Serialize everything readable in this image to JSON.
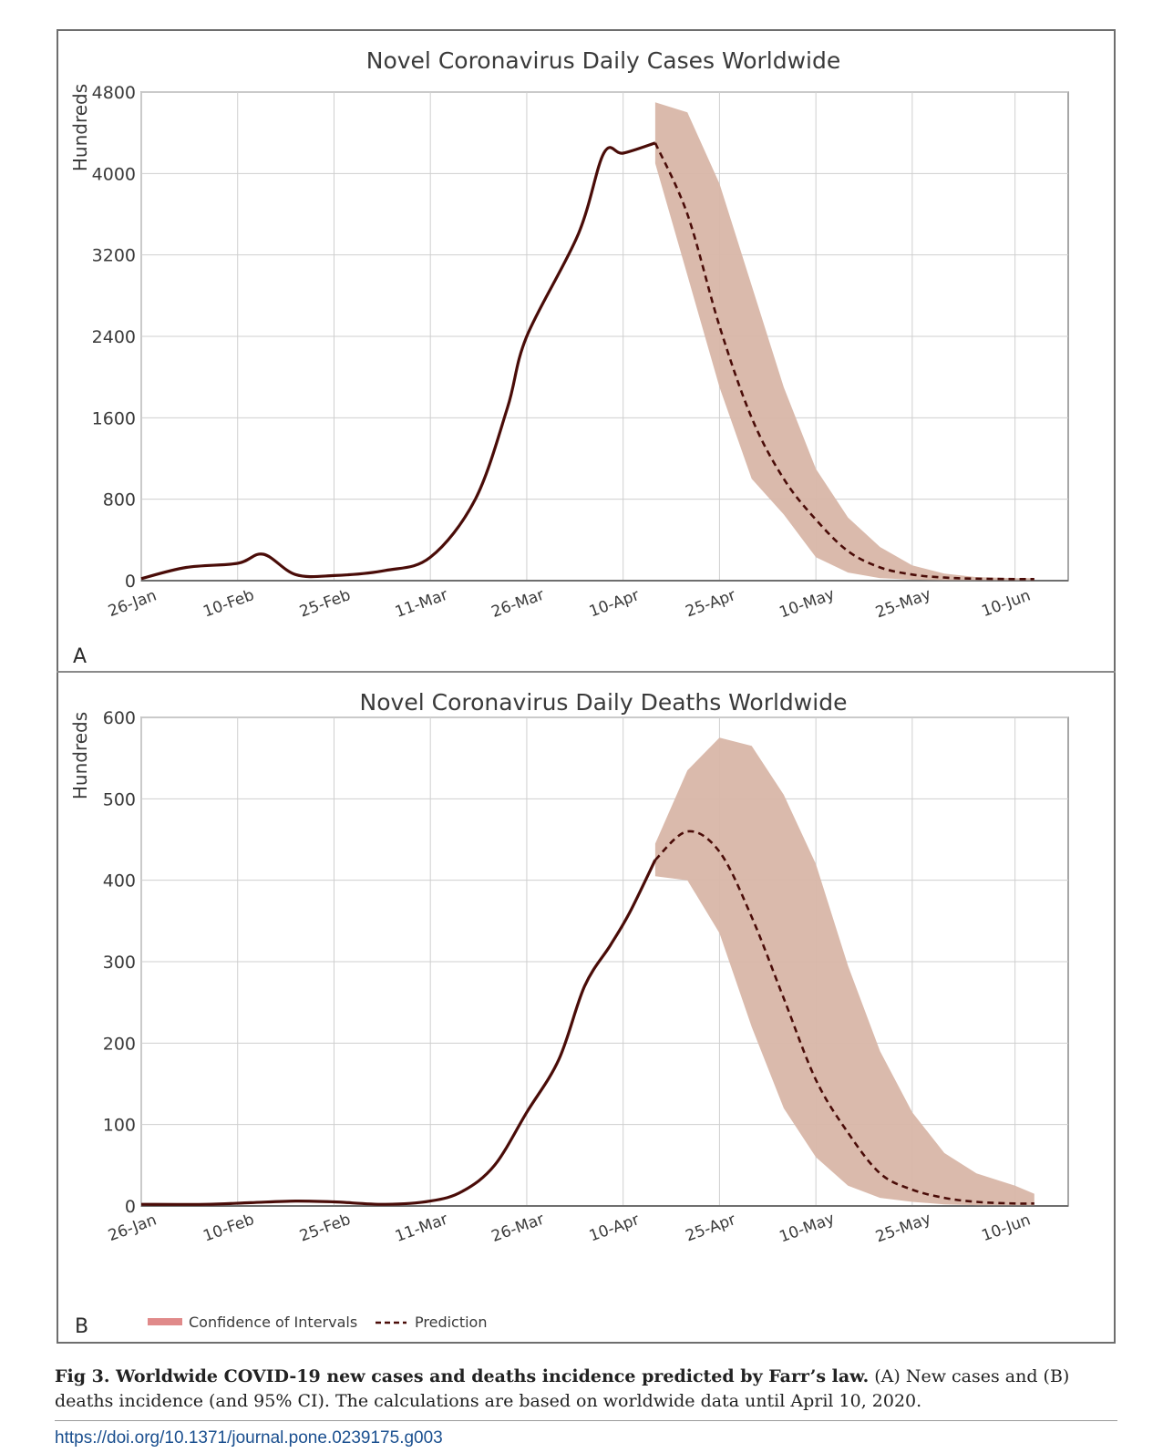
{
  "colors": {
    "line": "#4a0c08",
    "ci_fill": "#d8b6a8",
    "legend_ci": "#e08a8a",
    "grid": "#cfcfcf",
    "axis": "#8a8a8a",
    "link": "#1a4f8f"
  },
  "x_tick_labels": [
    "26-Jan",
    "10-Feb",
    "25-Feb",
    "11-Mar",
    "26-Mar",
    "10-Apr",
    "25-Apr",
    "10-May",
    "25-May",
    "10-Jun"
  ],
  "chart_data": [
    {
      "type": "line",
      "panel": "A",
      "title": "Novel Coronavirus Daily Cases Worldwide",
      "ylabel": "Hundreds",
      "ylim": [
        0,
        4800
      ],
      "yticks": [
        0,
        800,
        1600,
        2400,
        3200,
        4000,
        4800
      ],
      "x": [
        "26-Jan",
        "2-Feb",
        "10-Feb",
        "14-Feb",
        "19-Feb",
        "25-Feb",
        "4-Mar",
        "11-Mar",
        "18-Mar",
        "23-Mar",
        "26-Mar",
        "3-Apr",
        "7-Apr",
        "10-Apr",
        "15-Apr"
      ],
      "series": [
        {
          "values": [
            20,
            130,
            170,
            260,
            60,
            50,
            100,
            230,
            800,
            1700,
            2400,
            3400,
            4200,
            4200,
            4300
          ]
        }
      ],
      "prediction": {
        "x": [
          "15-Apr",
          "20-Apr",
          "25-Apr",
          "30-Apr",
          "5-May",
          "10-May",
          "15-May",
          "20-May",
          "25-May",
          "30-May",
          "4-Jun",
          "10-Jun",
          "13-Jun"
        ],
        "values": [
          4300,
          3600,
          2500,
          1600,
          1000,
          600,
          290,
          130,
          60,
          30,
          20,
          15,
          15
        ]
      },
      "ci": {
        "x": [
          "15-Apr",
          "20-Apr",
          "25-Apr",
          "30-Apr",
          "5-May",
          "10-May",
          "15-May",
          "20-May",
          "25-May",
          "30-May",
          "4-Jun",
          "10-Jun",
          "13-Jun"
        ],
        "lower": [
          4100,
          3000,
          1900,
          1000,
          650,
          230,
          80,
          25,
          10,
          5,
          5,
          5,
          5
        ],
        "upper": [
          4700,
          4600,
          3900,
          2900,
          1900,
          1100,
          620,
          330,
          150,
          70,
          35,
          25,
          25
        ]
      }
    },
    {
      "type": "line",
      "panel": "B",
      "title": "Novel Coronavirus Daily Deaths Worldwide",
      "ylabel": "Hundreds",
      "ylim": [
        0,
        600
      ],
      "yticks": [
        0,
        100,
        200,
        300,
        400,
        500,
        600
      ],
      "x": [
        "26-Jan",
        "5-Feb",
        "12-Feb",
        "19-Feb",
        "25-Feb",
        "4-Mar",
        "11-Mar",
        "16-Mar",
        "21-Mar",
        "26-Mar",
        "31-Mar",
        "4-Apr",
        "8-Apr",
        "11-Apr",
        "15-Apr"
      ],
      "series": [
        {
          "values": [
            2,
            2,
            4,
            6,
            5,
            2,
            6,
            18,
            50,
            115,
            180,
            270,
            320,
            360,
            425
          ]
        }
      ],
      "prediction": {
        "x": [
          "15-Apr",
          "20-Apr",
          "25-Apr",
          "30-Apr",
          "5-May",
          "10-May",
          "15-May",
          "20-May",
          "25-May",
          "30-May",
          "4-Jun",
          "10-Jun",
          "13-Jun"
        ],
        "values": [
          425,
          460,
          435,
          355,
          255,
          155,
          90,
          40,
          20,
          10,
          5,
          3,
          3
        ]
      },
      "ci": {
        "x": [
          "15-Apr",
          "20-Apr",
          "25-Apr",
          "30-Apr",
          "5-May",
          "10-May",
          "15-May",
          "20-May",
          "25-May",
          "30-May",
          "4-Jun",
          "10-Jun",
          "13-Jun"
        ],
        "lower": [
          405,
          400,
          335,
          220,
          120,
          60,
          25,
          10,
          5,
          2,
          1,
          1,
          1
        ],
        "upper": [
          445,
          535,
          575,
          565,
          505,
          420,
          295,
          190,
          115,
          65,
          40,
          25,
          15
        ]
      }
    }
  ],
  "panels": {
    "a_letter": "A",
    "b_letter": "B"
  },
  "legend": {
    "ci_label": "Confidence of Intervals",
    "prediction_label": "Prediction"
  },
  "caption": {
    "bold": "Fig 3. Worldwide COVID-19 new cases and deaths incidence predicted by Farr’s law.",
    "rest": " (A) New cases and (B) deaths incidence (and 95% CI). The calculations are based on worldwide data until April 10, 2020."
  },
  "doi": "https://doi.org/10.1371/journal.pone.0239175.g003"
}
